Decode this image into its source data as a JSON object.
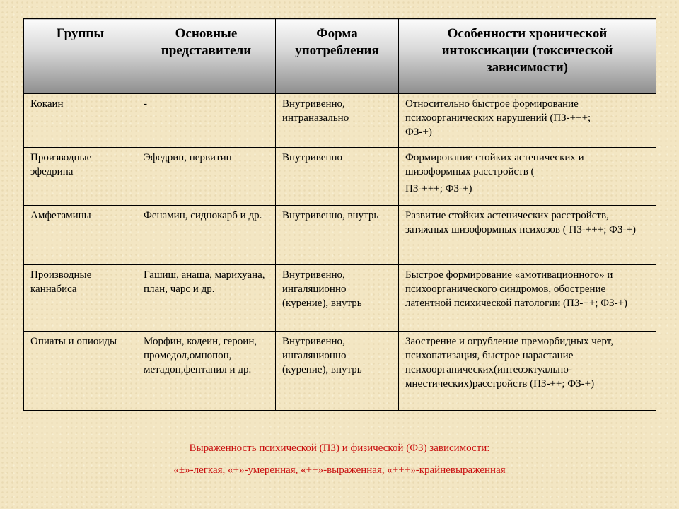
{
  "table": {
    "headers": [
      "Группы",
      "Основные представители",
      "Форма употребления",
      "Особенности хронической интоксикации (токсической зависимости)"
    ],
    "rows": [
      {
        "group": "Кокаин",
        "representatives": "-",
        "form": "Внутривенно, интраназально",
        "features": [
          "Относительно быстрое формирование психоорганических нарушений (ПЗ-+++;",
          "ФЗ-+)"
        ]
      },
      {
        "group": "Производные эфедрина",
        "representatives": "Эфедрин, первитин",
        "form": "Внутривенно",
        "features": [
          "Формирование стойких астенических и шизоформных расстройств (",
          "ПЗ-+++; ФЗ-+)"
        ]
      },
      {
        "group": "Амфетамины",
        "representatives": "Фенамин, сиднокарб и др.",
        "form": "Внутривенно, внутрь",
        "features": [
          "Развитие стойких астенических расстройств, затяжных шизоформных психозов ( ПЗ-+++; ФЗ-+)"
        ]
      },
      {
        "group": "Производные каннабиса",
        "representatives": "Гашиш, анаша, марихуана, план, чарс и др.",
        "form": "Внутривенно, ингаляционно (курение), внутрь",
        "features": [
          "Быстрое формирование «амотивационного» и психоорганического синдромов, обострение латентной психической патологии (ПЗ-++; ФЗ-+)"
        ]
      },
      {
        "group": "Опиаты и опиоиды",
        "representatives": "Морфин, кодеин, героин, промедол,омнопон, метадон,фентанил и др.",
        "form": "Внутривенно, ингаляционно (курение), внутрь",
        "features": [
          "Заострение и огрубление преморбидных черт, психопатизация, быстрое нарастание психоорганических(интеоэктуально-мнестических)расстройств (ПЗ-++; ФЗ-+)"
        ]
      }
    ]
  },
  "footnote": {
    "line1": "Выраженность психической (ПЗ) и физической (ФЗ) зависимости:",
    "line2": "«±»-легкая, «+»-умеренная, «++»-выраженная, «+++»-крайневыраженная"
  },
  "colors": {
    "background": "#f3e6c3",
    "footnote_text": "#c91010",
    "header_gradient_top": "#fbfbfb",
    "header_gradient_bottom": "#8e8e8e"
  }
}
